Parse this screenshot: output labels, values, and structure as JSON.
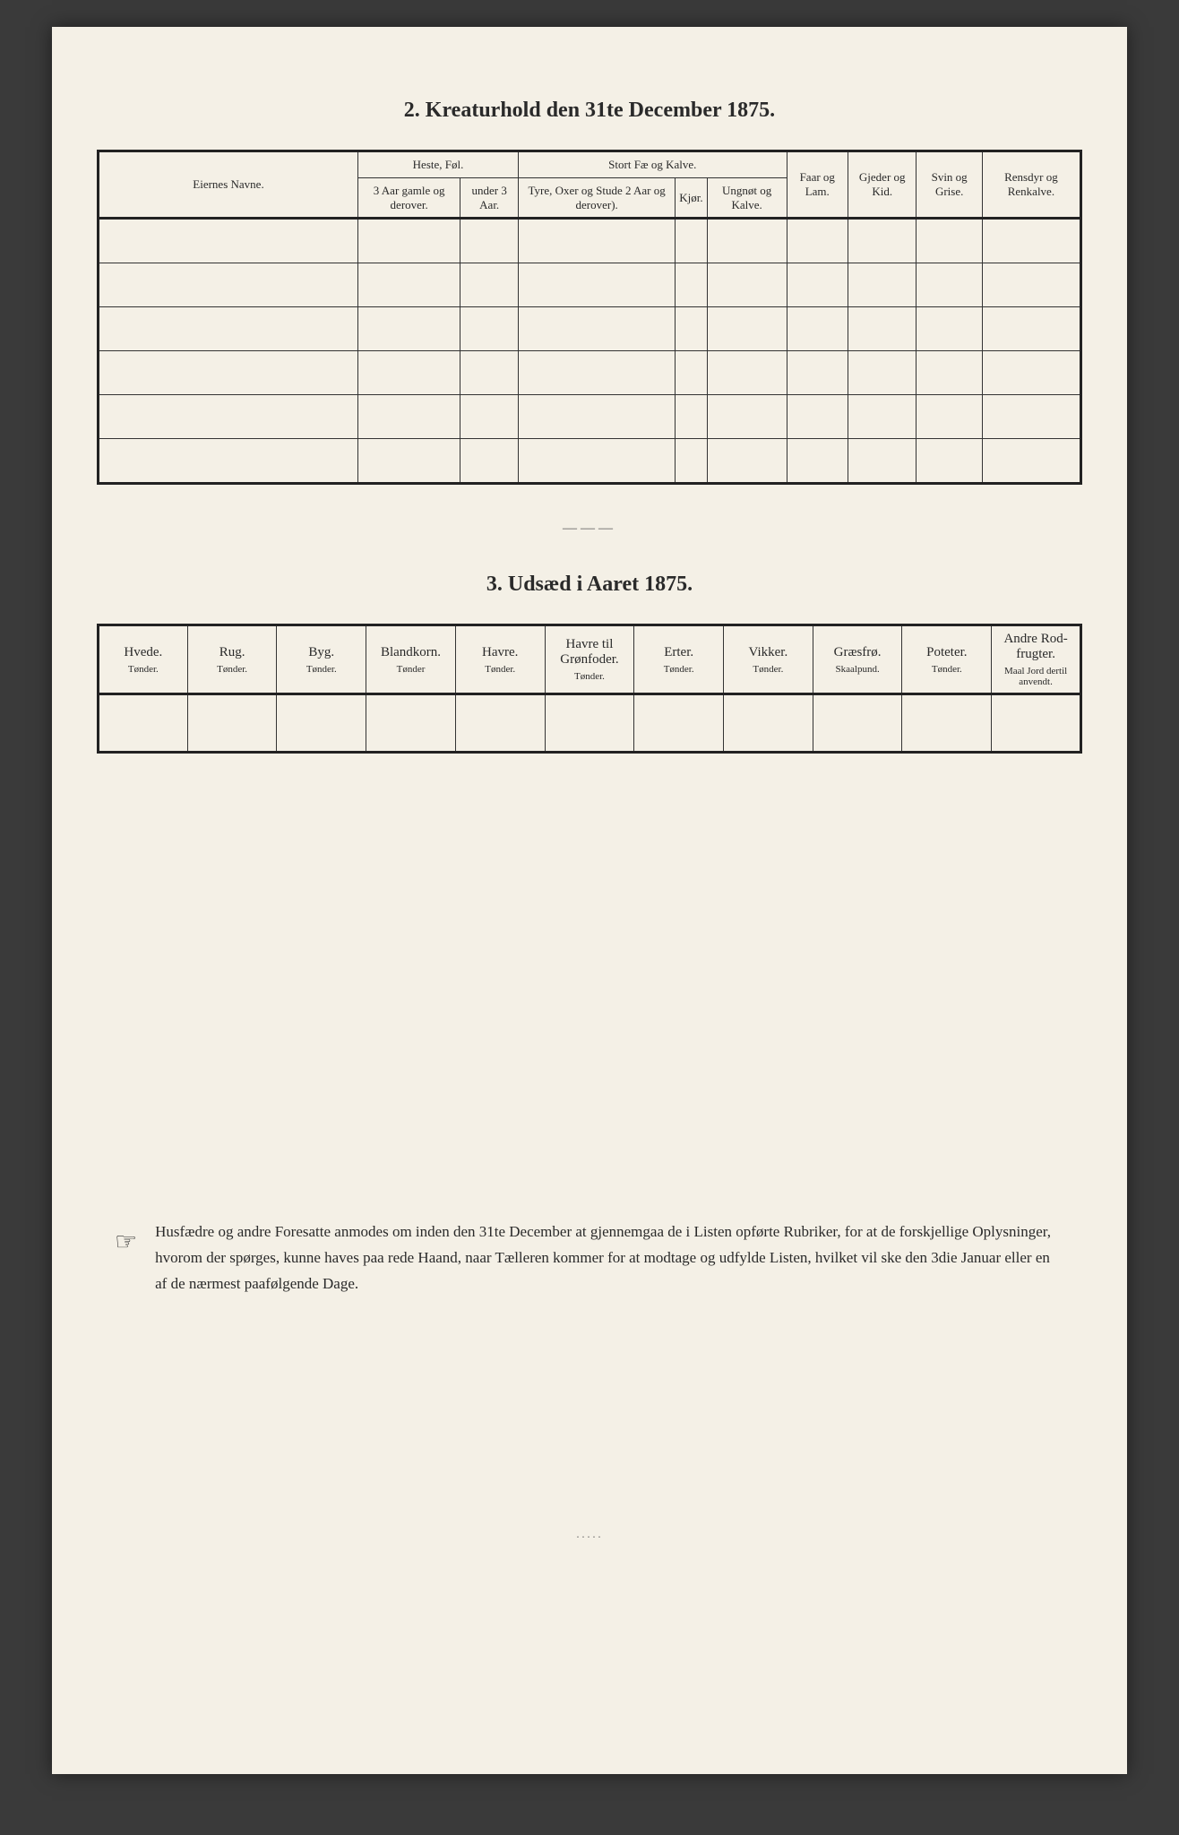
{
  "section2": {
    "title": "2.   Kreaturhold den 31te December 1875.",
    "eiernes": "Eiernes Navne.",
    "heste_fol": "Heste, Føl.",
    "heste_sub1": "3 Aar gamle og derover.",
    "heste_sub2": "under 3 Aar.",
    "stort_fae": "Stort Fæ og Kalve.",
    "stort_sub1": "Tyre, Oxer og Stude  2 Aar og derover).",
    "stort_sub2": "Kjør.",
    "stort_sub3": "Ungnøt og Kalve.",
    "faar": "Faar og Lam.",
    "gjeder": "Gjeder og Kid.",
    "svin": "Svin og Grise.",
    "rensdyr": "Rensdyr og Renkalve."
  },
  "section3": {
    "title": "3.   Udsæd i Aaret 1875.",
    "cols": [
      {
        "name": "Hvede.",
        "unit": "Tønder."
      },
      {
        "name": "Rug.",
        "unit": "Tønder."
      },
      {
        "name": "Byg.",
        "unit": "Tønder."
      },
      {
        "name": "Blandkorn.",
        "unit": "Tønder"
      },
      {
        "name": "Havre.",
        "unit": "Tønder."
      },
      {
        "name": "Havre til Grønfoder.",
        "unit": "Tønder."
      },
      {
        "name": "Erter.",
        "unit": "Tønder."
      },
      {
        "name": "Vikker.",
        "unit": "Tønder."
      },
      {
        "name": "Græsfrø.",
        "unit": "Skaalpund."
      },
      {
        "name": "Poteter.",
        "unit": "Tønder."
      },
      {
        "name": "Andre Rod-frugter.",
        "unit": "Maal Jord dertil anvendt."
      }
    ]
  },
  "footer": {
    "text": "Husfædre og andre Foresatte anmodes om inden den 31te December at gjennemgaa de i Listen opførte Rubriker, for at de forskjellige Oplysninger, hvorom der spørges, kunne haves paa rede Haand, naar Tælleren kommer for at modtage og udfylde Listen, hvilket vil ske den 3die Januar eller en af de nærmest paafølgende Dage."
  },
  "ornament": "———",
  "end_ornament": "·····"
}
